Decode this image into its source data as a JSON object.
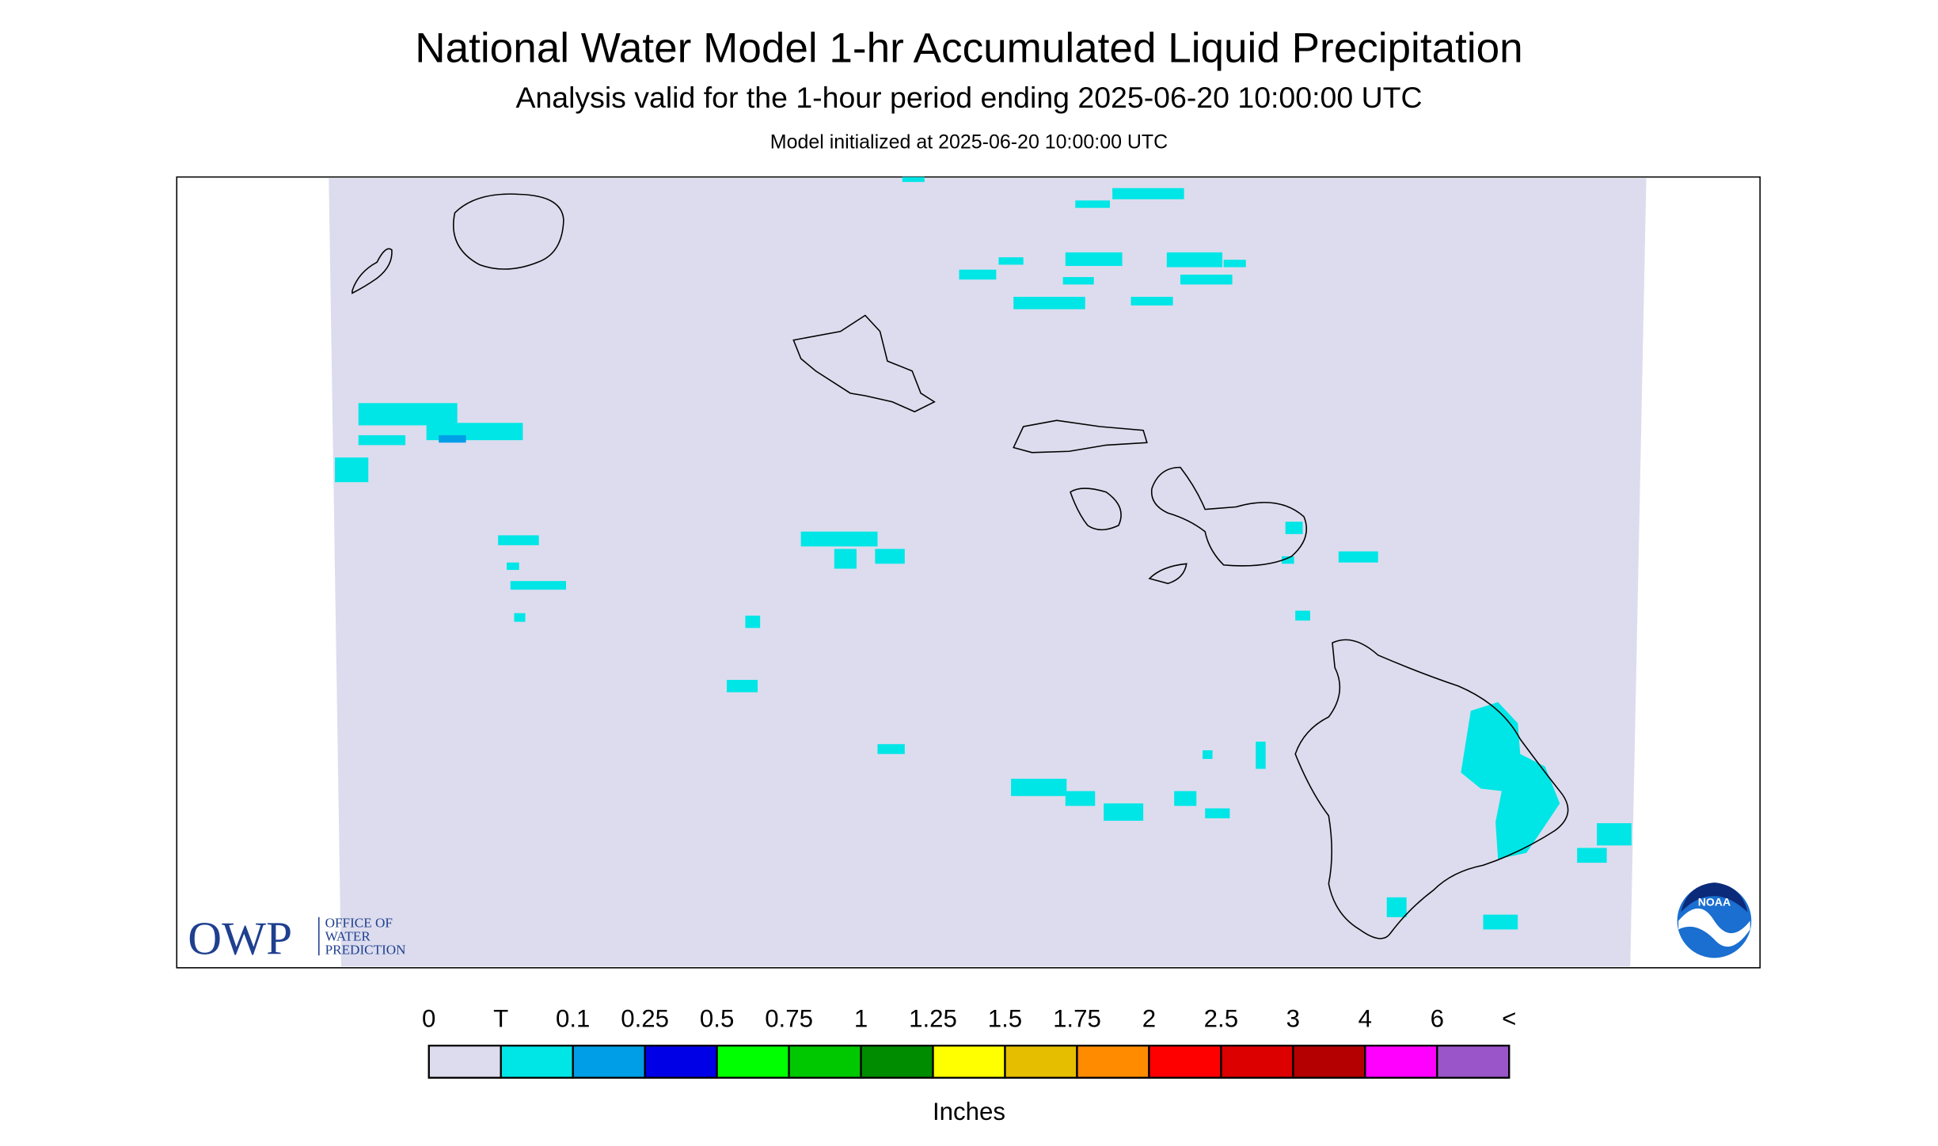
{
  "header": {
    "title": "National Water Model 1-hr Accumulated Liquid Precipitation",
    "subtitle": "Analysis valid for the 1-hour period ending 2025-06-20 10:00:00 UTC",
    "init": "Model initialized at 2025-06-20 10:00:00 UTC"
  },
  "legend": {
    "labels": [
      "0",
      "T",
      "0.1",
      "0.25",
      "0.5",
      "0.75",
      "1",
      "1.25",
      "1.5",
      "1.75",
      "2",
      "2.5",
      "3",
      "4",
      "6",
      "<"
    ],
    "colors": [
      "#dcdcee",
      "#00e6e6",
      "#009ee6",
      "#0000e6",
      "#00ff00",
      "#00c800",
      "#008c00",
      "#ffff00",
      "#e6be00",
      "#ff8c00",
      "#ff0000",
      "#dc0000",
      "#b40000",
      "#ff00ff",
      "#9a55c8"
    ],
    "unit": "Inches"
  },
  "logos": {
    "owp": "OWP",
    "owp_lines": [
      "OFFICE OF",
      "WATER",
      "PREDICTION"
    ],
    "noaa": "NOAA"
  }
}
